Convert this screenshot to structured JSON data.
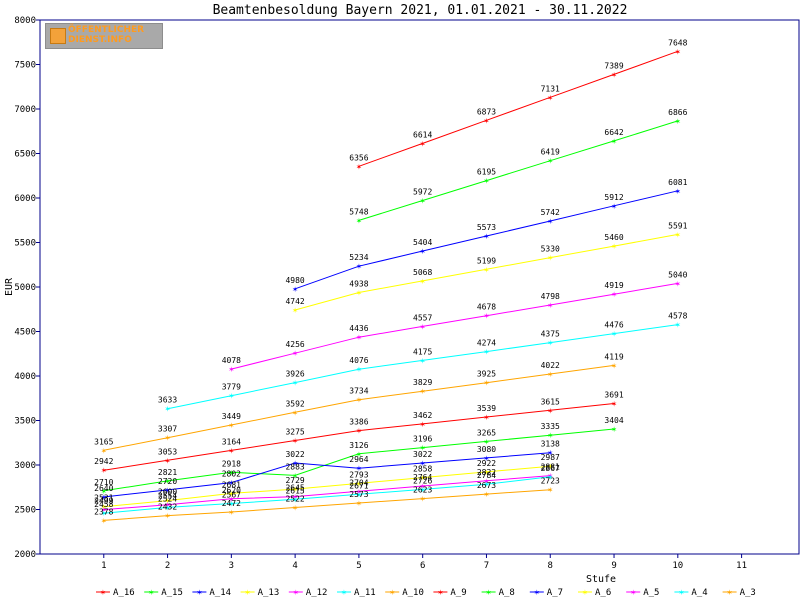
{
  "colors": {
    "A_16": "#ff0000",
    "A_15": "#00ff00",
    "A_14": "#0000ff",
    "A_13": "#ffff00",
    "A_12": "#ff00ff",
    "A_11": "#00ffff",
    "A_10": "#ffa500",
    "A_9": "#ff0000",
    "A_8": "#00ff00",
    "A_7": "#0000ff",
    "A_6": "#ffff00",
    "A_5": "#ff00ff",
    "A_4": "#00ffff",
    "A_3": "#ffa500",
    "axis": "#00008b",
    "title": "#00008b",
    "logo_bg": "#a9a9a9",
    "logo_text": "#ff9b1f"
  },
  "logo": {
    "line1": "ÖFFENTLICHER",
    "line2": "DIENST.INFO"
  },
  "chart_data": {
    "type": "line",
    "title": "Beamtenbesoldung Bayern 2021, 01.01.2021 - 30.11.2022",
    "xlabel": "Stufe",
    "ylabel": "EUR",
    "xlim": [
      0,
      11.9
    ],
    "ylim": [
      2000,
      8000
    ],
    "xticks": [
      1,
      2,
      3,
      4,
      5,
      6,
      7,
      8,
      9,
      10,
      11
    ],
    "yticks": [
      2000,
      2500,
      3000,
      3500,
      4000,
      4500,
      5000,
      5500,
      6000,
      6500,
      7000,
      7500,
      8000
    ],
    "grid": false,
    "legend_position": "bottom",
    "series": [
      {
        "name": "A_16",
        "x": [
          5,
          6,
          7,
          8,
          9,
          10
        ],
        "values": [
          6356,
          6614,
          6873,
          7131,
          7389,
          7648
        ]
      },
      {
        "name": "A_15",
        "x": [
          5,
          6,
          7,
          8,
          9,
          10
        ],
        "values": [
          5748,
          5972,
          6195,
          6419,
          6642,
          6866
        ]
      },
      {
        "name": "A_14",
        "x": [
          4,
          5,
          6,
          7,
          8,
          9,
          10
        ],
        "values": [
          4980,
          5234,
          5404,
          5573,
          5742,
          5912,
          6081
        ]
      },
      {
        "name": "A_13",
        "x": [
          4,
          5,
          6,
          7,
          8,
          9,
          10
        ],
        "values": [
          4742,
          4938,
          5068,
          5199,
          5330,
          5460,
          5591
        ]
      },
      {
        "name": "A_12",
        "x": [
          3,
          4,
          5,
          6,
          7,
          8,
          9,
          10
        ],
        "values": [
          4078,
          4256,
          4436,
          4557,
          4678,
          4798,
          4919,
          5040
        ]
      },
      {
        "name": "A_11",
        "x": [
          2,
          3,
          4,
          5,
          6,
          7,
          8,
          9,
          10
        ],
        "values": [
          3633,
          3779,
          3926,
          4076,
          4175,
          4274,
          4375,
          4476,
          4578
        ]
      },
      {
        "name": "A_10",
        "x": [
          1,
          2,
          3,
          4,
          5,
          6,
          7,
          8,
          9
        ],
        "values": [
          3165,
          3307,
          3449,
          3592,
          3734,
          3829,
          3925,
          4022,
          4119
        ]
      },
      {
        "name": "A_9",
        "x": [
          1,
          2,
          3,
          4,
          5,
          6,
          7,
          8,
          9
        ],
        "values": [
          2942,
          3053,
          3164,
          3275,
          3386,
          3462,
          3539,
          3615,
          3691
        ]
      },
      {
        "name": "A_8",
        "x": [
          1,
          2,
          3,
          4,
          5,
          6,
          7,
          8,
          9
        ],
        "values": [
          2710,
          2821,
          2918,
          2883,
          3126,
          3196,
          3265,
          3335,
          3404
        ]
      },
      {
        "name": "A_7",
        "x": [
          1,
          2,
          3,
          4,
          5,
          6,
          7,
          8
        ],
        "values": [
          2640,
          2720,
          2802,
          3022,
          2964,
          3022,
          3080,
          3138
        ]
      },
      {
        "name": "A_6",
        "x": [
          1,
          2,
          3,
          4,
          5,
          6,
          7,
          8
        ],
        "values": [
          2531,
          2600,
          2681,
          2729,
          2793,
          2858,
          2922,
          2987
        ]
      },
      {
        "name": "A_5",
        "x": [
          1,
          2,
          3,
          4,
          5,
          6,
          7,
          8
        ],
        "values": [
          2499,
          2554,
          2620,
          2645,
          2704,
          2764,
          2822,
          2881
        ]
      },
      {
        "name": "A_4",
        "x": [
          1,
          2,
          3,
          4,
          5,
          6,
          7,
          8
        ],
        "values": [
          2458,
          2524,
          2567,
          2615,
          2671,
          2726,
          2784,
          2867
        ]
      },
      {
        "name": "A_3",
        "x": [
          1,
          2,
          3,
          4,
          5,
          6,
          7,
          8
        ],
        "values": [
          2378,
          2432,
          2472,
          2522,
          2573,
          2623,
          2673,
          2723
        ]
      }
    ]
  }
}
